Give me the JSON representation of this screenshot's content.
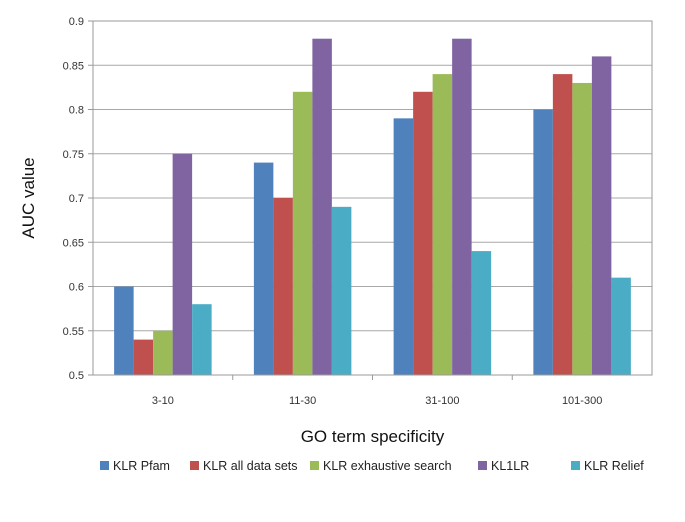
{
  "chart_data": {
    "type": "bar",
    "title": "",
    "xlabel": "GO term specificity",
    "ylabel": "AUC value",
    "ylim": [
      0.5,
      0.9
    ],
    "yticks": [
      0.5,
      0.55,
      0.6,
      0.65,
      0.7,
      0.75,
      0.8,
      0.85,
      0.9
    ],
    "ytick_labels": [
      "0.5",
      "0.55",
      "0.6",
      "0.65",
      "0.7",
      "0.75",
      "0.8",
      "0.85",
      "0.9"
    ],
    "grid": true,
    "legend_position": "bottom",
    "categories": [
      "3-10",
      "11-30",
      "31-100",
      "101-300"
    ],
    "series": [
      {
        "name": "KLR Pfam",
        "color": "#4f81bd",
        "values": [
          0.6,
          0.74,
          0.79,
          0.8
        ]
      },
      {
        "name": "KLR all data sets",
        "color": "#c0504d",
        "values": [
          0.54,
          0.7,
          0.82,
          0.84
        ]
      },
      {
        "name": "KLR exhaustive search",
        "color": "#9bbb59",
        "values": [
          0.55,
          0.82,
          0.84,
          0.83
        ]
      },
      {
        "name": "KL1LR",
        "color": "#8064a2",
        "values": [
          0.75,
          0.88,
          0.88,
          0.86
        ]
      },
      {
        "name": "KLR Relief",
        "color": "#4bacc6",
        "values": [
          0.58,
          0.69,
          0.64,
          0.61
        ]
      }
    ]
  }
}
